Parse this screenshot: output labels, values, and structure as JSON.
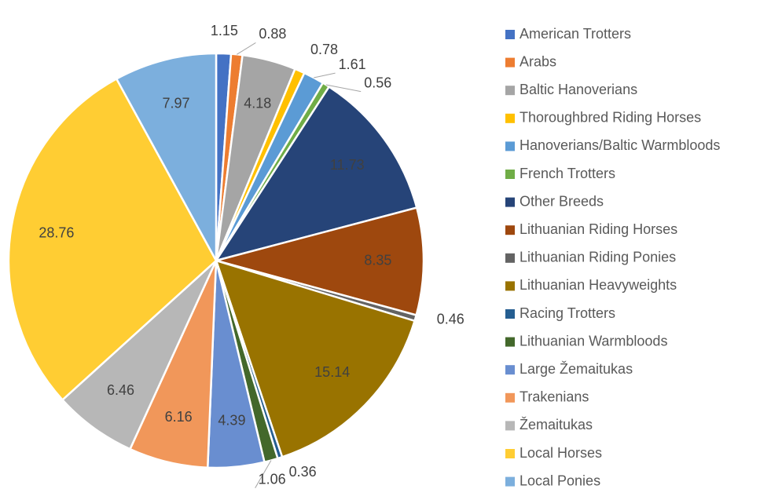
{
  "chart_data": {
    "type": "pie",
    "categories": [
      "American Trotters",
      "Arabs",
      "Baltic Hanoverians",
      "Thoroughbred Riding Horses",
      "Hanoverians/Baltic Warmbloods",
      "French Trotters",
      "Other Breeds",
      "Lithuanian Riding Horses",
      "Lithuanian Riding Ponies",
      "Lithuanian Heavyweights",
      "Racing Trotters",
      "Lithuanian Warmbloods",
      "Large Žemaitukas",
      "Trakenians",
      "Žemaitukas",
      "Local Horses",
      "Local Ponies"
    ],
    "values": [
      1.15,
      0.88,
      4.18,
      0.78,
      1.61,
      0.56,
      11.73,
      8.35,
      0.46,
      15.14,
      0.36,
      1.06,
      4.39,
      6.16,
      6.46,
      28.76,
      7.97
    ],
    "colors": [
      "#4472c4",
      "#ed7d31",
      "#a5a5a5",
      "#ffc000",
      "#5b9bd5",
      "#70ad47",
      "#264478",
      "#9e480e",
      "#636363",
      "#997300",
      "#255e91",
      "#43682b",
      "#698ed0",
      "#f1975a",
      "#b7b7b7",
      "#ffcd33",
      "#7cafdd"
    ],
    "legend": "right"
  }
}
